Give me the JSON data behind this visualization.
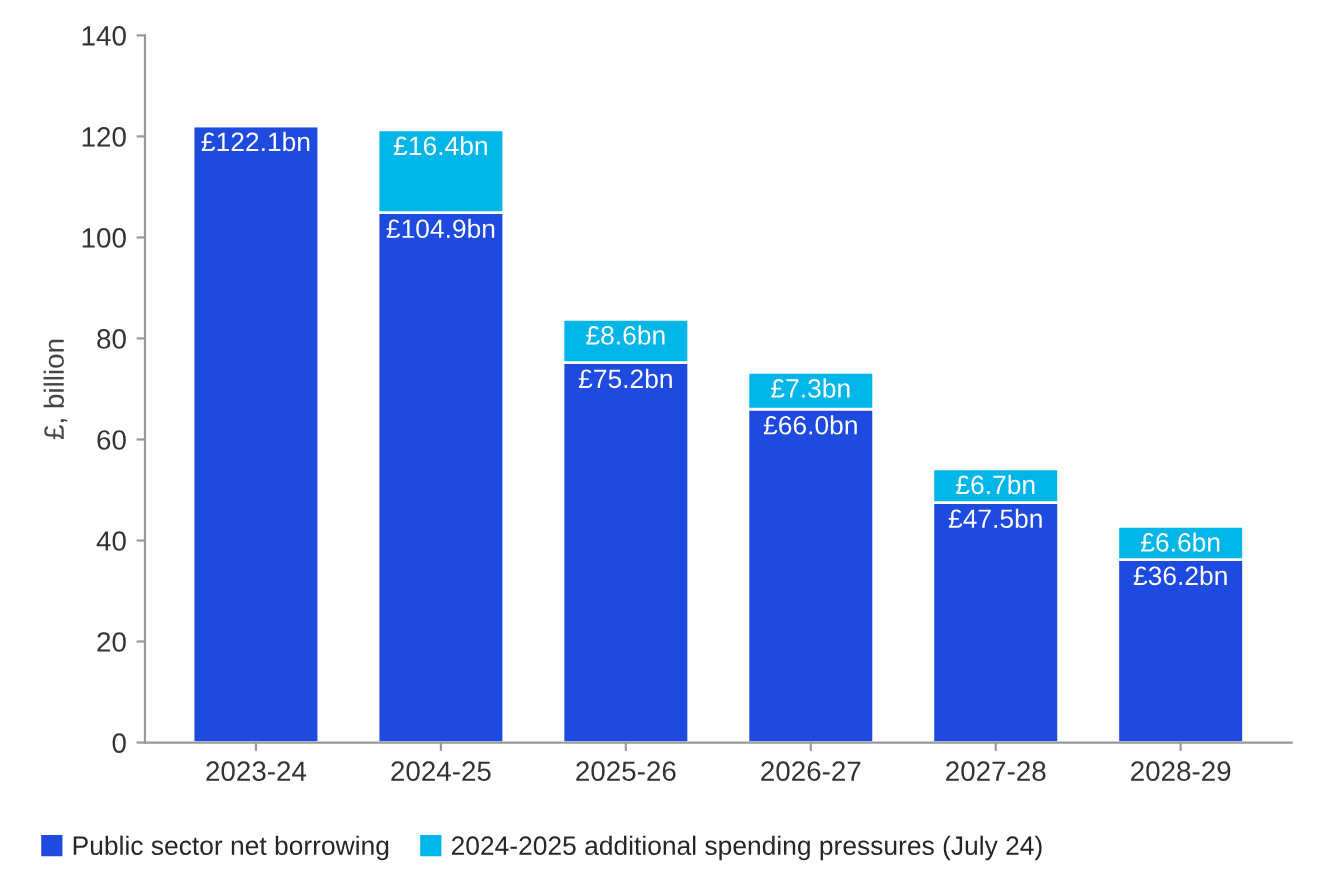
{
  "chart_data": {
    "type": "bar",
    "stacked": true,
    "ylabel": "£, billion",
    "categories": [
      "2023-24",
      "2024-25",
      "2025-26",
      "2026-27",
      "2027-28",
      "2028-29"
    ],
    "series": [
      {
        "name": "Public sector net borrowing",
        "color": "#1f4ae0",
        "values": [
          122.1,
          104.9,
          75.2,
          66.0,
          47.5,
          36.2
        ],
        "value_labels": [
          "£122.1bn",
          "£104.9bn",
          "£75.2bn",
          "£66.0bn",
          "£47.5bn",
          "£36.2bn"
        ]
      },
      {
        "name": "2024-2025 additional spending pressures (July 24)",
        "color": "#00b5e8",
        "values": [
          null,
          16.4,
          8.6,
          7.3,
          6.7,
          6.6
        ],
        "value_labels": [
          null,
          "£16.4bn",
          "£8.6bn",
          "£7.3bn",
          "£6.7bn",
          "£6.6bn"
        ]
      }
    ],
    "ylim": [
      0,
      140
    ],
    "yticks": [
      0,
      20,
      40,
      60,
      80,
      100,
      120,
      140
    ],
    "grid": false,
    "legend": "bottom"
  }
}
